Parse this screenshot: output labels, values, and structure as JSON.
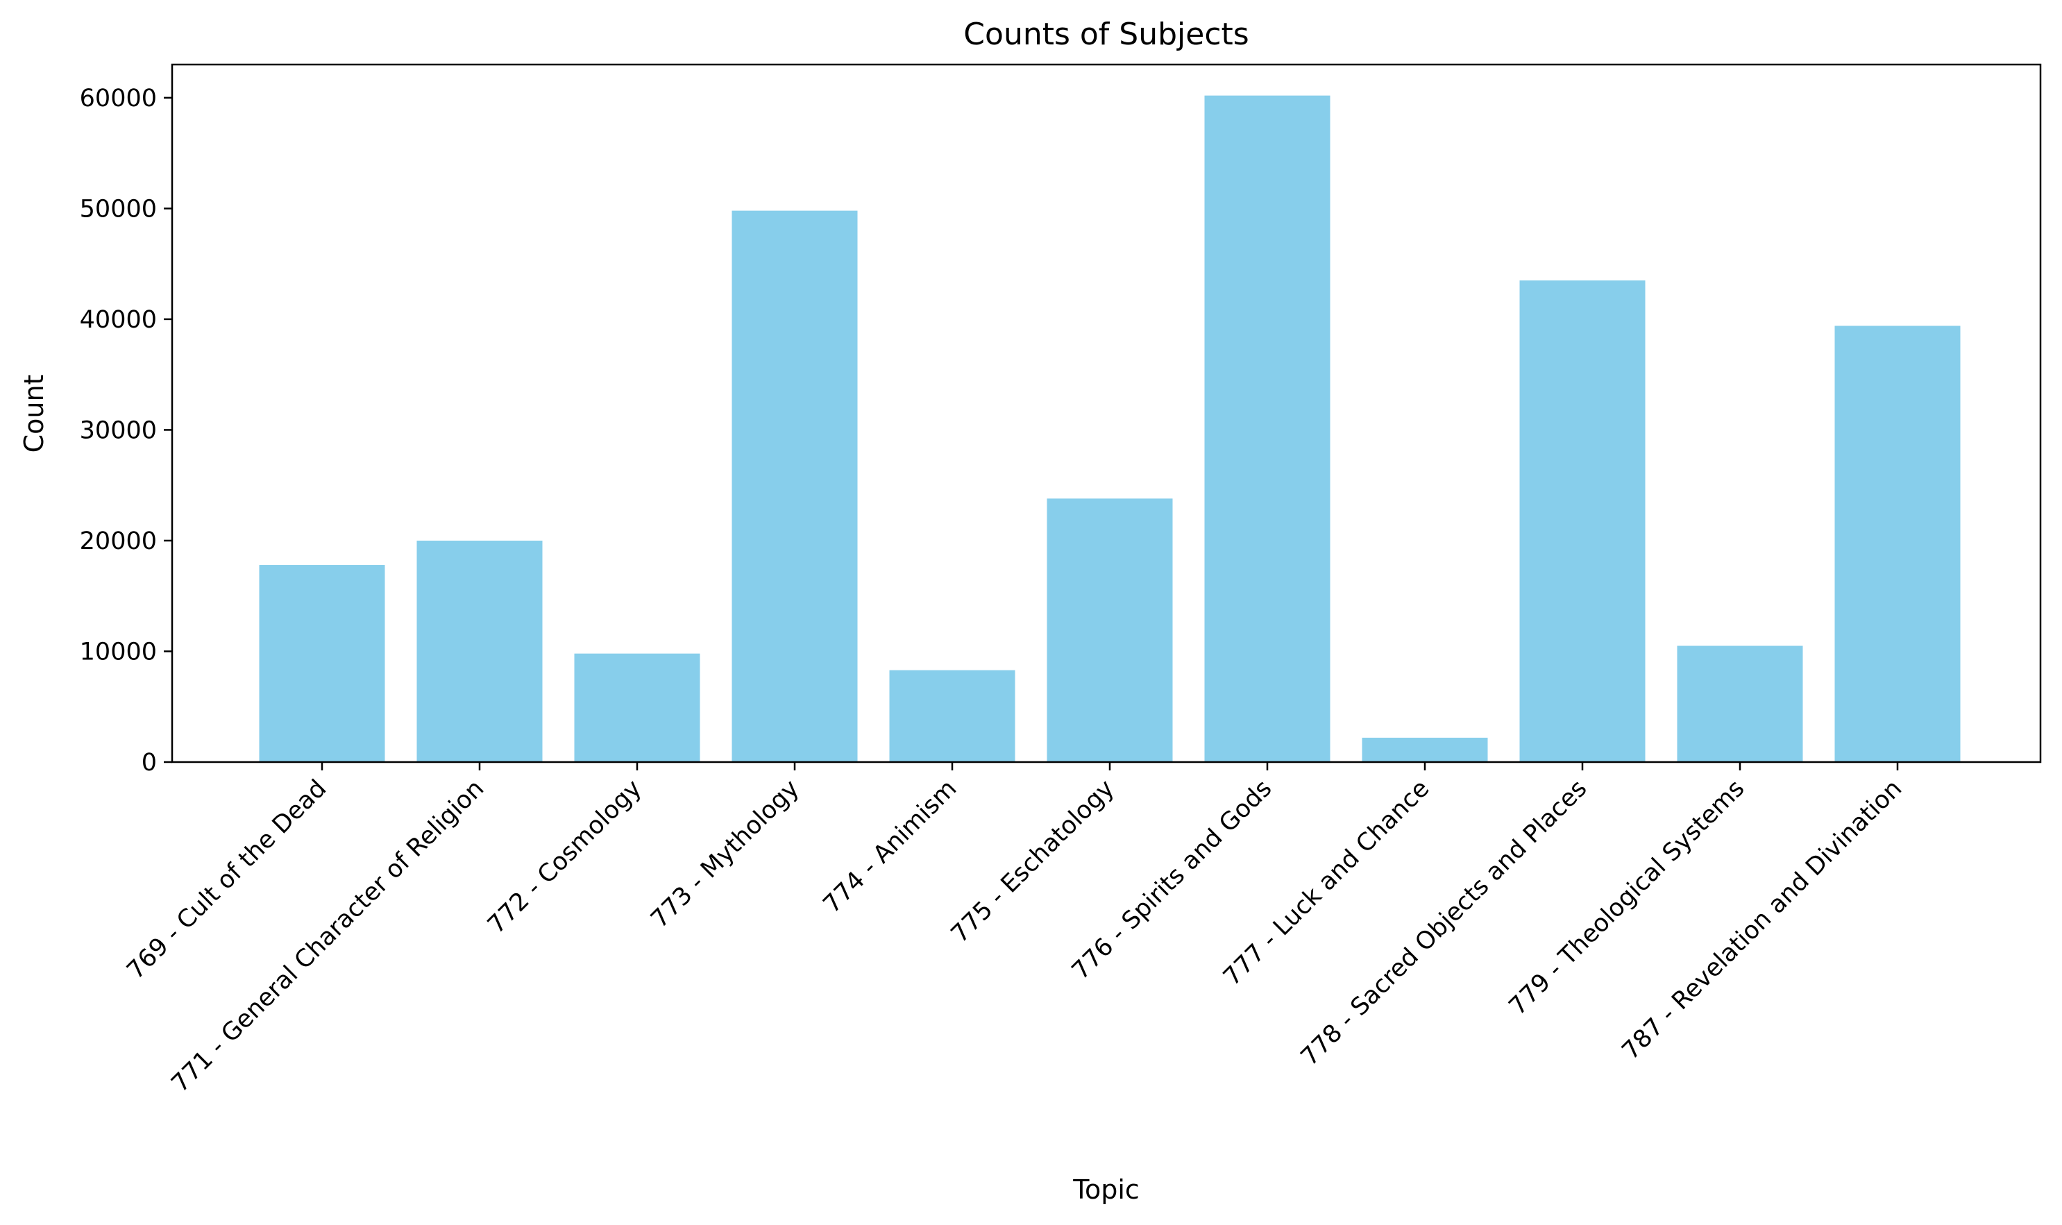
{
  "chart_data": {
    "type": "bar",
    "title": "Counts of Subjects",
    "xlabel": "Topic",
    "ylabel": "Count",
    "categories": [
      "769 - Cult of the Dead",
      "771 - General Character of Religion",
      "772 - Cosmology",
      "773 - Mythology",
      "774 - Animism",
      "775 - Eschatology",
      "776 - Spirits and Gods",
      "777 - Luck and Chance",
      "778 - Sacred Objects and Places",
      "779 - Theological Systems",
      "787 - Revelation and Divination"
    ],
    "values": [
      17800,
      20000,
      9800,
      49800,
      8300,
      23800,
      60200,
      2200,
      43500,
      10500,
      39400
    ],
    "ylim": [
      0,
      63000
    ],
    "yticks": [
      0,
      10000,
      20000,
      30000,
      40000,
      50000,
      60000
    ],
    "ytick_labels": [
      "0",
      "10000",
      "20000",
      "30000",
      "40000",
      "50000",
      "60000"
    ],
    "bar_color": "#87ceeb",
    "grid": false,
    "legend": "none"
  }
}
